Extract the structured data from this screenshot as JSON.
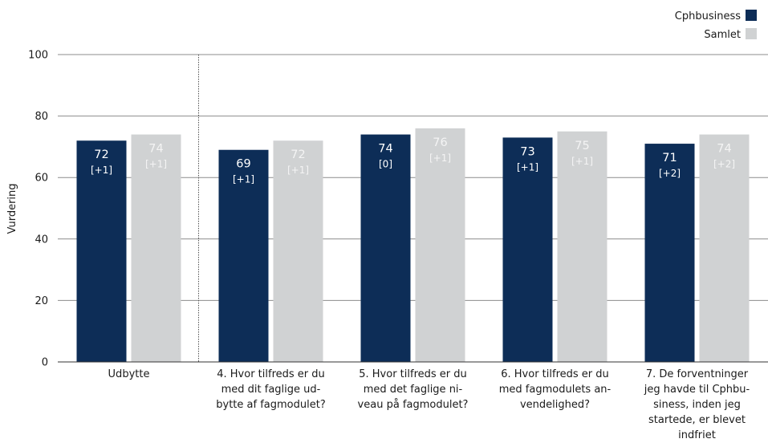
{
  "chart_data": {
    "type": "bar",
    "ylabel": "Vurdering",
    "ylim": [
      0,
      100
    ],
    "yticks": [
      0,
      20,
      40,
      60,
      80,
      100
    ],
    "grid": true,
    "legend_position": "top-right",
    "categories": [
      "Udbytte",
      "4. Hvor tilfreds er du med dit faglige udbytte af fagmodulet?",
      "5. Hvor tilfreds er du med det faglige niveau på fagmodulet?",
      "6. Hvor tilfreds er du med fagmodulets anvendelighed?",
      "7. De forventninger jeg havde til Cphbusiness, inden jeg startede, er blevet indfriet"
    ],
    "category_label_lines": [
      [
        "Udbytte"
      ],
      [
        "4. Hvor tilfreds er du",
        "med dit faglige ud-",
        "bytte af fagmodulet?"
      ],
      [
        "5. Hvor tilfreds er du",
        "med det faglige ni-",
        "veau på fagmodulet?"
      ],
      [
        "6. Hvor tilfreds er du",
        "med fagmodulets an-",
        "vendelighed?"
      ],
      [
        "7. De forventninger",
        "jeg havde til Cphbu-",
        "siness, inden jeg",
        "startede, er blevet",
        "indfriet"
      ]
    ],
    "series": [
      {
        "name": "Cphbusiness",
        "color": "#0d2d57",
        "label_color": "#ffffff",
        "values": [
          72,
          69,
          74,
          73,
          71
        ],
        "labels": [
          "72",
          "69",
          "74",
          "73",
          "71"
        ],
        "deltas": [
          "[+1]",
          "[+1]",
          "[0]",
          "[+1]",
          "[+2]"
        ]
      },
      {
        "name": "Samlet",
        "color": "#d0d2d3",
        "label_color": "#f4f4f4",
        "values": [
          74,
          72,
          76,
          75,
          74
        ],
        "labels": [
          "74",
          "72",
          "76",
          "75",
          "74"
        ],
        "deltas": [
          "[+1]",
          "[+1]",
          "[+1]",
          "[+1]",
          "[+2]"
        ]
      }
    ]
  }
}
